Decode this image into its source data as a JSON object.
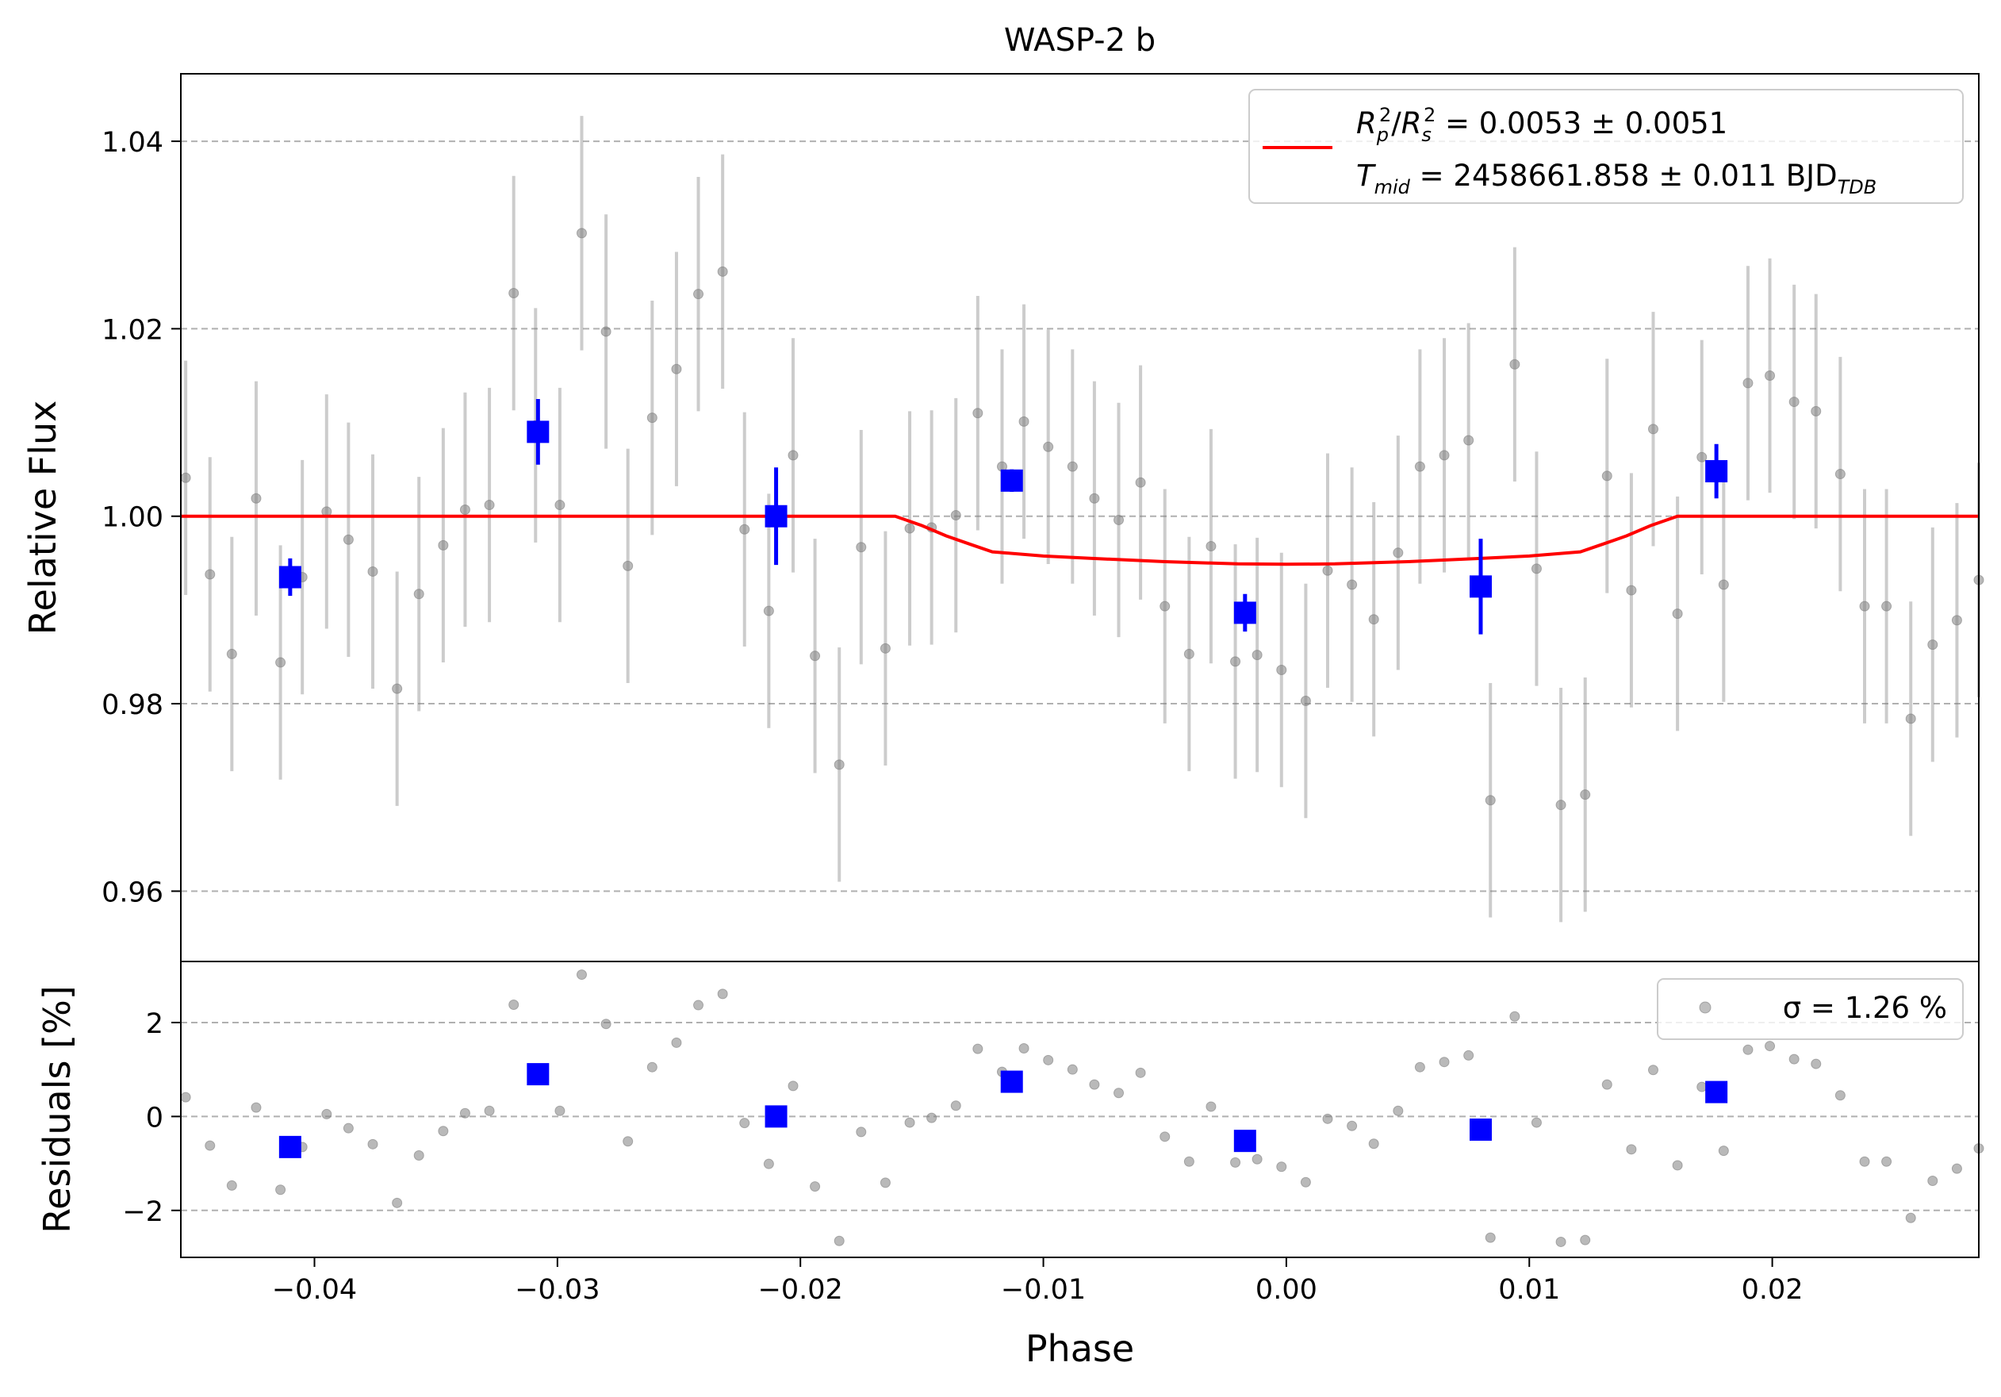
{
  "chart_data": [
    {
      "type": "scatter",
      "title": "WASP-2 b",
      "xlabel": "",
      "ylabel": "Relative Flux",
      "xlim": [
        -0.0455,
        0.0285
      ],
      "ylim": [
        0.9525,
        1.0472
      ],
      "yticks": [
        0.96,
        0.98,
        1.0,
        1.02,
        1.04
      ],
      "ytick_labels": [
        "0.96",
        "0.98",
        "1.00",
        "1.02",
        "1.04"
      ],
      "grid": "horizontal dashed",
      "legend_position": "upper-right",
      "legend": {
        "line1": "Rₚ²/Rₛ² = 0.0053 ± 0.0051",
        "line2": "Tₘᵢᵈ = 2458661.858 ± 0.011 BJDᵀᴰᴮ"
      },
      "model": {
        "color": "#ff0000",
        "points": [
          [
            -0.0455,
            1.0
          ],
          [
            -0.0161,
            1.0
          ],
          [
            -0.015,
            0.999
          ],
          [
            -0.014,
            0.9979
          ],
          [
            -0.013,
            0.997
          ],
          [
            -0.0121,
            0.9962
          ],
          [
            -0.01,
            0.99575
          ],
          [
            -0.008,
            0.9955
          ],
          [
            -0.005,
            0.99515
          ],
          [
            -0.002,
            0.99492
          ],
          [
            0.0,
            0.99487
          ],
          [
            0.002,
            0.99492
          ],
          [
            0.005,
            0.99515
          ],
          [
            0.008,
            0.9955
          ],
          [
            0.01,
            0.99575
          ],
          [
            0.0121,
            0.9962
          ],
          [
            0.013,
            0.997
          ],
          [
            0.014,
            0.9979
          ],
          [
            0.015,
            0.999
          ],
          [
            0.0161,
            1.0
          ],
          [
            0.0285,
            1.0
          ]
        ]
      },
      "series": [
        {
          "kind": "raw",
          "color": "#808080",
          "x": [
            -0.0453,
            -0.0443,
            -0.0434,
            -0.0424,
            -0.0414,
            -0.0405,
            -0.0395,
            -0.0386,
            -0.0376,
            -0.0366,
            -0.0357,
            -0.0347,
            -0.0338,
            -0.0328,
            -0.0318,
            -0.0309,
            -0.0299,
            -0.029,
            -0.028,
            -0.0271,
            -0.0261,
            -0.0251,
            -0.0242,
            -0.0232,
            -0.0223,
            -0.0213,
            -0.0203,
            -0.0194,
            -0.0184,
            -0.0175,
            -0.0165,
            -0.0155,
            -0.0146,
            -0.0136,
            -0.0127,
            -0.0117,
            -0.0108,
            -0.0098,
            -0.0088,
            -0.0079,
            -0.0069,
            -0.006,
            -0.005,
            -0.004,
            -0.0031,
            -0.0021,
            -0.0012,
            -0.0002,
            0.0008,
            0.0017,
            0.0027,
            0.0036,
            0.0046,
            0.0055,
            0.0065,
            0.0075,
            0.0084,
            0.0094,
            0.0103,
            0.0113,
            0.0123,
            0.0132,
            0.0142,
            0.0151,
            0.0161,
            0.0171,
            0.018,
            0.019,
            0.0199,
            0.0209,
            0.0218,
            0.0228,
            0.0238,
            0.0247,
            0.0257,
            0.0266,
            0.0276,
            0.0285
          ],
          "y": [
            1.0041,
            0.9938,
            0.9853,
            1.0019,
            0.9844,
            0.9935,
            1.0005,
            0.9975,
            0.9941,
            0.9816,
            0.9917,
            0.9969,
            1.0007,
            1.0012,
            1.0238,
            1.0097,
            1.0012,
            1.0302,
            1.0197,
            0.9947,
            1.0105,
            1.0157,
            1.0237,
            1.0261,
            0.9986,
            0.9899,
            1.0065,
            0.9851,
            0.9735,
            0.9967,
            0.9859,
            0.9987,
            0.9988,
            1.0001,
            1.011,
            1.0053,
            1.0101,
            1.0074,
            1.0053,
            1.0019,
            0.9996,
            1.0036,
            0.9904,
            0.9853,
            0.9968,
            0.9845,
            0.9852,
            0.9836,
            0.9803,
            0.9942,
            0.9927,
            0.989,
            0.9961,
            1.0053,
            1.0065,
            1.0081,
            0.9697,
            1.0162,
            0.9944,
            0.9692,
            0.9703,
            1.0043,
            0.9921,
            1.0093,
            0.9896,
            1.0063,
            0.9927,
            1.0142,
            1.015,
            1.0122,
            1.0112,
            1.0045,
            0.9904,
            0.9904,
            0.9784,
            0.9863,
            0.9889,
            0.9932
          ],
          "err": [
            0.0125,
            0.0125,
            0.0125,
            0.0125,
            0.0125,
            0.0125,
            0.0125,
            0.0125,
            0.0125,
            0.0125,
            0.0125,
            0.0125,
            0.0125,
            0.0125,
            0.0125,
            0.0125,
            0.0125,
            0.0125,
            0.0125,
            0.0125,
            0.0125,
            0.0125,
            0.0125,
            0.0125,
            0.0125,
            0.0125,
            0.0125,
            0.0125,
            0.0125,
            0.0125,
            0.0125,
            0.0125,
            0.0125,
            0.0125,
            0.0125,
            0.0125,
            0.0125,
            0.0125,
            0.0125,
            0.0125,
            0.0125,
            0.0125,
            0.0125,
            0.0125,
            0.0125,
            0.0125,
            0.0125,
            0.0125,
            0.0125,
            0.0125,
            0.0125,
            0.0125,
            0.0125,
            0.0125,
            0.0125,
            0.0125,
            0.0125,
            0.0125,
            0.0125,
            0.0125,
            0.0125,
            0.0125,
            0.0125,
            0.0125,
            0.0125,
            0.0125,
            0.0125,
            0.0125,
            0.0125,
            0.0125,
            0.0125,
            0.0125,
            0.0125,
            0.0125,
            0.0125,
            0.0125,
            0.0125,
            0.0125
          ]
        },
        {
          "kind": "binned",
          "color": "#0000ff",
          "x": [
            -0.041,
            -0.0308,
            -0.021,
            -0.0113,
            -0.0017,
            0.008,
            0.0177
          ],
          "y": [
            0.9935,
            1.009,
            1.0,
            1.0038,
            0.9897,
            0.9925,
            1.0048
          ],
          "err": [
            0.002,
            0.0035,
            0.0052,
            0.0012,
            0.002,
            0.0051,
            0.0029
          ]
        }
      ]
    },
    {
      "type": "scatter",
      "title": "",
      "xlabel": "Phase",
      "ylabel": "Residuals [%]",
      "xlim": [
        -0.0455,
        0.0285
      ],
      "ylim": [
        -3.0,
        3.3
      ],
      "yticks": [
        -2,
        0,
        2
      ],
      "ytick_labels": [
        "−2",
        "0",
        "2"
      ],
      "xticks": [
        -0.04,
        -0.03,
        -0.02,
        -0.01,
        0.0,
        0.01,
        0.02
      ],
      "xtick_labels": [
        "−0.04",
        "−0.03",
        "−0.02",
        "−0.01",
        "0.00",
        "0.01",
        "0.02"
      ],
      "grid": "horizontal dashed",
      "legend_position": "upper-right",
      "legend": {
        "label": "σ = 1.26 %"
      },
      "series": [
        {
          "kind": "raw",
          "color": "#808080",
          "x": [
            -0.0453,
            -0.0443,
            -0.0434,
            -0.0424,
            -0.0414,
            -0.0405,
            -0.0395,
            -0.0386,
            -0.0376,
            -0.0366,
            -0.0357,
            -0.0347,
            -0.0338,
            -0.0328,
            -0.0318,
            -0.0309,
            -0.0299,
            -0.029,
            -0.028,
            -0.0271,
            -0.0261,
            -0.0251,
            -0.0242,
            -0.0232,
            -0.0223,
            -0.0213,
            -0.0203,
            -0.0194,
            -0.0184,
            -0.0175,
            -0.0165,
            -0.0155,
            -0.0146,
            -0.0136,
            -0.0127,
            -0.0117,
            -0.0108,
            -0.0098,
            -0.0088,
            -0.0079,
            -0.0069,
            -0.006,
            -0.005,
            -0.004,
            -0.0031,
            -0.0021,
            -0.0012,
            -0.0002,
            0.0008,
            0.0017,
            0.0027,
            0.0036,
            0.0046,
            0.0055,
            0.0065,
            0.0075,
            0.0084,
            0.0094,
            0.0103,
            0.0113,
            0.0123,
            0.0132,
            0.0142,
            0.0151,
            0.0161,
            0.0171,
            0.018,
            0.019,
            0.0199,
            0.0209,
            0.0218,
            0.0228,
            0.0238,
            0.0247,
            0.0257,
            0.0266,
            0.0276,
            0.0285
          ],
          "y": [
            0.41,
            -0.62,
            -1.47,
            0.19,
            -1.56,
            -0.65,
            0.05,
            -0.25,
            -0.59,
            -1.84,
            -0.83,
            -0.31,
            0.07,
            0.12,
            2.38,
            0.97,
            0.12,
            3.02,
            1.97,
            -0.53,
            1.05,
            1.57,
            2.37,
            2.61,
            -0.14,
            -1.01,
            0.65,
            -1.49,
            -2.65,
            -0.33,
            -1.41,
            -0.13,
            -0.03,
            0.23,
            1.44,
            0.95,
            1.45,
            1.2,
            1.0,
            0.68,
            0.5,
            0.93,
            -0.43,
            -0.96,
            0.21,
            -0.98,
            -0.91,
            -1.07,
            -1.4,
            -0.05,
            -0.2,
            -0.58,
            0.12,
            1.05,
            1.16,
            1.3,
            -2.58,
            2.13,
            -0.13,
            -2.67,
            -2.63,
            0.68,
            -0.7,
            0.99,
            -1.04,
            0.63,
            -0.73,
            1.42,
            1.5,
            1.22,
            1.12,
            0.45,
            -0.96,
            -0.96,
            -2.16,
            -1.37,
            -1.11,
            -0.68
          ]
        },
        {
          "kind": "binned",
          "color": "#0000ff",
          "x": [
            -0.041,
            -0.0308,
            -0.021,
            -0.0113,
            -0.0017,
            0.008,
            0.0177
          ],
          "y": [
            -0.65,
            0.9,
            0.0,
            0.74,
            -0.52,
            -0.28,
            0.52
          ]
        }
      ]
    }
  ]
}
